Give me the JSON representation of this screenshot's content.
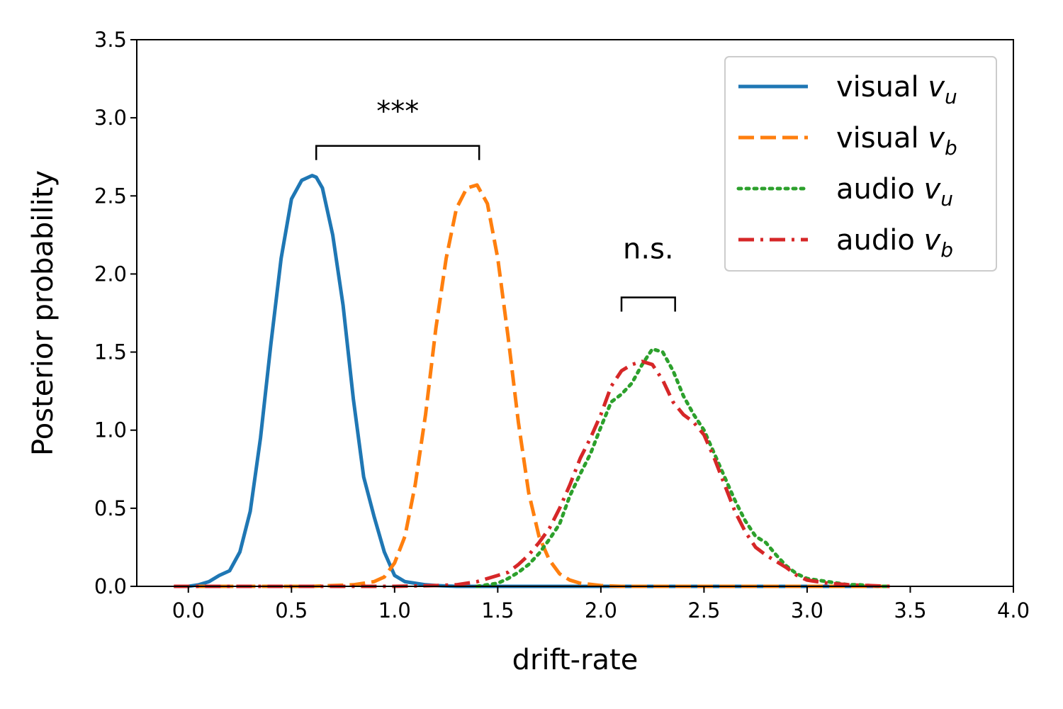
{
  "chart_data": {
    "type": "line",
    "xlabel": "drift-rate",
    "ylabel": "Posterior probability",
    "xlim": [
      -0.25,
      4.0
    ],
    "ylim": [
      0.0,
      3.5
    ],
    "xticks": [
      "0.0",
      "0.5",
      "1.0",
      "1.5",
      "2.0",
      "2.5",
      "3.0",
      "3.5",
      "4.0"
    ],
    "yticks": [
      "0.0",
      "0.5",
      "1.0",
      "1.5",
      "2.0",
      "2.5",
      "3.0",
      "3.5"
    ],
    "grid": false,
    "legend_placement": "top-right",
    "series": [
      {
        "name": "visual v_u",
        "legend_text": "visual",
        "legend_sym": "v",
        "legend_sub": "u",
        "color": "#1f77b4",
        "style": "solid",
        "x": [
          -0.07,
          0.0,
          0.05,
          0.1,
          0.15,
          0.2,
          0.25,
          0.3,
          0.35,
          0.4,
          0.45,
          0.5,
          0.55,
          0.6,
          0.62,
          0.65,
          0.7,
          0.75,
          0.8,
          0.85,
          0.9,
          0.95,
          1.0,
          1.05,
          1.1,
          1.15,
          1.2,
          1.3,
          1.5,
          1.8,
          2.2,
          2.6,
          3.0,
          3.4
        ],
        "y": [
          0.0,
          0.0,
          0.01,
          0.03,
          0.07,
          0.1,
          0.22,
          0.48,
          0.95,
          1.55,
          2.1,
          2.48,
          2.6,
          2.63,
          2.62,
          2.55,
          2.25,
          1.8,
          1.2,
          0.7,
          0.45,
          0.22,
          0.07,
          0.03,
          0.02,
          0.01,
          0.005,
          0.0,
          0.0,
          0.0,
          0.0,
          0.0,
          0.0,
          0.0
        ]
      },
      {
        "name": "visual v_b",
        "legend_text": "visual",
        "legend_sym": "v",
        "legend_sub": "b",
        "color": "#ff7f0e",
        "style": "dashed",
        "x": [
          -0.07,
          0.3,
          0.6,
          0.8,
          0.9,
          0.95,
          1.0,
          1.05,
          1.1,
          1.15,
          1.2,
          1.25,
          1.3,
          1.35,
          1.4,
          1.45,
          1.5,
          1.55,
          1.6,
          1.65,
          1.7,
          1.75,
          1.8,
          1.85,
          1.9,
          2.0,
          2.1,
          2.5,
          3.0,
          3.4
        ],
        "y": [
          0.0,
          0.0,
          0.0,
          0.01,
          0.03,
          0.06,
          0.15,
          0.32,
          0.65,
          1.1,
          1.65,
          2.1,
          2.42,
          2.55,
          2.57,
          2.45,
          2.1,
          1.6,
          1.05,
          0.6,
          0.32,
          0.17,
          0.08,
          0.04,
          0.02,
          0.005,
          0.0,
          0.0,
          0.0,
          0.0
        ]
      },
      {
        "name": "audio v_u",
        "legend_text": "audio",
        "legend_sym": "v",
        "legend_sub": "u",
        "color": "#2ca02c",
        "style": "dotted",
        "x": [
          1.4,
          1.5,
          1.55,
          1.6,
          1.65,
          1.7,
          1.75,
          1.8,
          1.85,
          1.9,
          1.95,
          2.0,
          2.05,
          2.1,
          2.15,
          2.2,
          2.25,
          2.3,
          2.35,
          2.4,
          2.45,
          2.5,
          2.55,
          2.6,
          2.65,
          2.7,
          2.75,
          2.8,
          2.85,
          2.9,
          2.95,
          3.0,
          3.05,
          3.1,
          3.15,
          3.2,
          3.25,
          3.3,
          3.35,
          3.4
        ],
        "y": [
          0.0,
          0.02,
          0.05,
          0.09,
          0.14,
          0.21,
          0.3,
          0.4,
          0.58,
          0.72,
          0.85,
          1.02,
          1.18,
          1.23,
          1.3,
          1.42,
          1.52,
          1.5,
          1.38,
          1.22,
          1.1,
          1.0,
          0.85,
          0.7,
          0.55,
          0.42,
          0.32,
          0.28,
          0.2,
          0.13,
          0.08,
          0.05,
          0.04,
          0.03,
          0.02,
          0.01,
          0.01,
          0.005,
          0.0,
          0.0
        ]
      },
      {
        "name": "audio v_b",
        "legend_text": "audio",
        "legend_sym": "v",
        "legend_sub": "b",
        "color": "#d62728",
        "style": "dashdot",
        "x": [
          -0.07,
          0.5,
          1.0,
          1.2,
          1.3,
          1.35,
          1.4,
          1.45,
          1.5,
          1.55,
          1.6,
          1.65,
          1.7,
          1.75,
          1.8,
          1.85,
          1.9,
          1.95,
          2.0,
          2.05,
          2.1,
          2.15,
          2.2,
          2.25,
          2.3,
          2.35,
          2.4,
          2.45,
          2.5,
          2.55,
          2.6,
          2.65,
          2.7,
          2.75,
          2.8,
          2.85,
          2.9,
          2.95,
          3.0,
          3.1,
          3.2,
          3.3,
          3.4
        ],
        "y": [
          0.0,
          0.0,
          0.0,
          0.005,
          0.01,
          0.02,
          0.03,
          0.05,
          0.07,
          0.09,
          0.14,
          0.2,
          0.28,
          0.37,
          0.5,
          0.65,
          0.82,
          0.95,
          1.1,
          1.28,
          1.38,
          1.42,
          1.44,
          1.42,
          1.32,
          1.18,
          1.1,
          1.05,
          0.97,
          0.82,
          0.65,
          0.48,
          0.35,
          0.25,
          0.2,
          0.16,
          0.12,
          0.07,
          0.04,
          0.02,
          0.01,
          0.005,
          0.0
        ]
      }
    ],
    "annotations": [
      {
        "text": "***",
        "x_left": 0.62,
        "x_right": 1.41,
        "y_bar": 2.82,
        "y_text": 2.98
      },
      {
        "text": "n.s.",
        "x_left": 2.1,
        "x_right": 2.36,
        "y_bar": 1.85,
        "y_text": 2.1
      }
    ]
  }
}
